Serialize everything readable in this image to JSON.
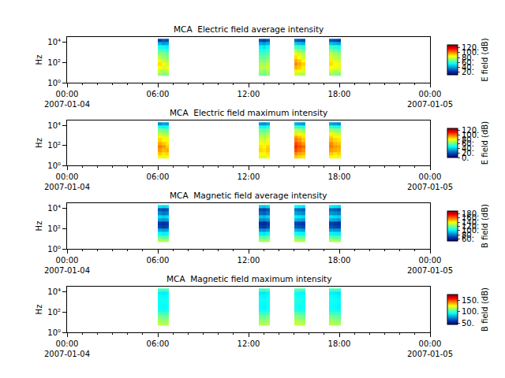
{
  "chart_data": [
    {
      "type": "heatmap",
      "title": "MCA  Electric field average intensity",
      "ylabel": "Hz",
      "log": "y",
      "x": [
        "2007-01-04 06:00",
        "2007-01-04 06:15",
        "2007-01-04 06:30",
        "2007-01-04 06:45",
        "2007-01-04 12:40",
        "2007-01-04 12:55",
        "2007-01-04 13:10",
        "2007-01-04 13:25",
        "2007-01-04 15:00",
        "2007-01-04 15:15",
        "2007-01-04 15:30",
        "2007-01-04 15:45",
        "2007-01-04 17:20",
        "2007-01-04 17:35",
        "2007-01-04 17:50",
        "2007-01-04 18:05"
      ],
      "y": [
        5,
        10,
        20,
        50,
        100,
        200,
        500,
        1000,
        2000,
        5000,
        10000,
        20000
      ],
      "cells": [
        [
          74,
          70,
          72,
          null,
          70,
          68,
          72,
          null,
          80,
          78,
          76,
          null,
          74,
          72,
          70
        ],
        [
          80,
          76,
          78,
          null,
          74,
          72,
          76,
          null,
          88,
          84,
          82,
          null,
          80,
          76,
          78
        ],
        [
          86,
          82,
          84,
          null,
          78,
          76,
          80,
          null,
          95,
          92,
          88,
          null,
          86,
          84,
          82
        ],
        [
          90,
          86,
          80,
          null,
          76,
          74,
          78,
          null,
          100,
          96,
          92,
          null,
          90,
          86,
          84
        ],
        [
          84,
          80,
          76,
          null,
          72,
          70,
          74,
          null,
          96,
          92,
          86,
          null,
          88,
          82,
          80
        ],
        [
          78,
          74,
          72,
          null,
          68,
          66,
          70,
          null,
          90,
          86,
          80,
          null,
          82,
          78,
          76
        ],
        [
          72,
          70,
          68,
          null,
          64,
          62,
          66,
          null,
          84,
          80,
          76,
          null,
          78,
          74,
          72
        ],
        [
          66,
          64,
          62,
          null,
          60,
          58,
          62,
          null,
          76,
          72,
          70,
          null,
          72,
          68,
          66
        ],
        [
          58,
          56,
          54,
          null,
          54,
          52,
          56,
          null,
          64,
          62,
          60,
          null,
          62,
          60,
          58
        ],
        [
          44,
          40,
          42,
          null,
          42,
          40,
          44,
          null,
          48,
          46,
          44,
          null,
          46,
          44,
          42
        ],
        [
          26,
          30,
          28,
          null,
          28,
          26,
          30,
          null,
          32,
          30,
          28,
          null,
          30,
          28,
          26
        ]
      ],
      "xlim": [
        "2007-01-04 00:00",
        "2007-01-05 00:00"
      ],
      "xticks": [
        {
          "value": "2007-01-04 00:00",
          "label": "00:00\n2007-01-04"
        },
        {
          "value": "2007-01-04 06:00",
          "label": "06:00"
        },
        {
          "value": "2007-01-04 12:00",
          "label": "12:00"
        },
        {
          "value": "2007-01-04 18:00",
          "label": "18:00"
        },
        {
          "value": "2007-01-05 00:00",
          "label": "00:00\n2007-01-05"
        }
      ],
      "ylim": [
        1,
        30000
      ],
      "yticks": [
        {
          "value": 1,
          "label": "10⁰"
        },
        {
          "value": 100,
          "label": "10²"
        },
        {
          "value": 10000,
          "label": "10⁴"
        }
      ],
      "colorbar_title": "E field (dB)",
      "colorbar_range": [
        10,
        132
      ],
      "colorbar_ticks": [
        {
          "value": 20,
          "label": "20."
        },
        {
          "value": 40,
          "label": "40."
        },
        {
          "value": 60,
          "label": "60."
        },
        {
          "value": 80,
          "label": "80."
        },
        {
          "value": 100,
          "label": "100."
        },
        {
          "value": 120,
          "label": "120."
        }
      ]
    },
    {
      "type": "heatmap",
      "title": "MCA  Electric field maximum intensity",
      "ylabel": "Hz",
      "log": "y",
      "x": [
        "2007-01-04 06:00",
        "2007-01-04 06:15",
        "2007-01-04 06:30",
        "2007-01-04 06:45",
        "2007-01-04 12:40",
        "2007-01-04 12:55",
        "2007-01-04 13:10",
        "2007-01-04 13:25",
        "2007-01-04 15:00",
        "2007-01-04 15:15",
        "2007-01-04 15:30",
        "2007-01-04 15:45",
        "2007-01-04 17:20",
        "2007-01-04 17:35",
        "2007-01-04 17:50",
        "2007-01-04 18:05"
      ],
      "y": [
        5,
        10,
        20,
        50,
        100,
        200,
        500,
        1000,
        2000,
        5000,
        10000,
        20000
      ],
      "cells": [
        [
          82,
          78,
          80,
          null,
          78,
          76,
          80,
          null,
          88,
          86,
          84,
          null,
          82,
          80,
          78
        ],
        [
          88,
          84,
          86,
          null,
          82,
          80,
          84,
          null,
          96,
          92,
          90,
          null,
          88,
          84,
          86
        ],
        [
          94,
          90,
          92,
          null,
          86,
          84,
          88,
          null,
          104,
          100,
          96,
          null,
          94,
          92,
          90
        ],
        [
          98,
          94,
          88,
          null,
          84,
          82,
          86,
          null,
          108,
          104,
          100,
          null,
          98,
          94,
          92
        ],
        [
          92,
          88,
          84,
          null,
          80,
          78,
          82,
          null,
          104,
          100,
          94,
          null,
          96,
          90,
          88
        ],
        [
          86,
          82,
          80,
          null,
          76,
          74,
          78,
          null,
          98,
          94,
          88,
          null,
          90,
          86,
          84
        ],
        [
          80,
          78,
          76,
          null,
          72,
          70,
          74,
          null,
          92,
          88,
          84,
          null,
          86,
          82,
          80
        ],
        [
          74,
          72,
          70,
          null,
          68,
          66,
          70,
          null,
          84,
          80,
          78,
          null,
          80,
          76,
          74
        ],
        [
          66,
          64,
          62,
          null,
          62,
          60,
          64,
          null,
          72,
          70,
          68,
          null,
          70,
          68,
          66
        ],
        [
          52,
          48,
          50,
          null,
          50,
          48,
          52,
          null,
          56,
          54,
          52,
          null,
          54,
          52,
          50
        ],
        [
          30,
          34,
          32,
          null,
          32,
          30,
          34,
          null,
          36,
          34,
          32,
          null,
          34,
          32,
          30
        ]
      ],
      "xlim": [
        "2007-01-04 00:00",
        "2007-01-05 00:00"
      ],
      "xticks": [
        {
          "value": "2007-01-04 00:00",
          "label": "00:00\n2007-01-04"
        },
        {
          "value": "2007-01-04 06:00",
          "label": "06:00"
        },
        {
          "value": "2007-01-04 12:00",
          "label": "12:00"
        },
        {
          "value": "2007-01-04 18:00",
          "label": "18:00"
        },
        {
          "value": "2007-01-05 00:00",
          "label": "00:00\n2007-01-05"
        }
      ],
      "ylim": [
        1,
        30000
      ],
      "yticks": [
        {
          "value": 1,
          "label": "10⁰"
        },
        {
          "value": 100,
          "label": "10²"
        },
        {
          "value": 10000,
          "label": "10⁴"
        }
      ],
      "colorbar_title": "E field (dB)",
      "colorbar_range": [
        0,
        130
      ],
      "colorbar_ticks": [
        {
          "value": 0,
          "label": "0."
        },
        {
          "value": 20,
          "label": "20."
        },
        {
          "value": 40,
          "label": "40."
        },
        {
          "value": 60,
          "label": "60."
        },
        {
          "value": 80,
          "label": "80."
        },
        {
          "value": 100,
          "label": "100."
        },
        {
          "value": 120,
          "label": "120."
        }
      ]
    },
    {
      "type": "heatmap",
      "title": "MCA  Magnetic field average intensity",
      "ylabel": "Hz",
      "log": "y",
      "x": [
        "2007-01-04 06:00",
        "2007-01-04 06:15",
        "2007-01-04 06:30",
        "2007-01-04 06:45",
        "2007-01-04 12:40",
        "2007-01-04 12:55",
        "2007-01-04 13:10",
        "2007-01-04 13:25",
        "2007-01-04 15:00",
        "2007-01-04 15:15",
        "2007-01-04 15:30",
        "2007-01-04 15:45",
        "2007-01-04 17:20",
        "2007-01-04 17:35",
        "2007-01-04 17:50",
        "2007-01-04 18:05"
      ],
      "y": [
        5,
        10,
        20,
        50,
        100,
        200,
        500,
        1000,
        2000,
        5000,
        10000,
        20000
      ],
      "cells": [
        [
          128,
          126,
          127,
          null,
          126,
          125,
          127,
          null,
          130,
          128,
          127,
          null,
          127,
          126,
          125
        ],
        [
          118,
          116,
          117,
          null,
          116,
          115,
          117,
          null,
          120,
          118,
          117,
          null,
          117,
          116,
          115
        ],
        [
          104,
          102,
          103,
          null,
          102,
          100,
          103,
          null,
          106,
          104,
          103,
          null,
          103,
          102,
          101
        ],
        [
          90,
          88,
          89,
          null,
          86,
          84,
          88,
          null,
          92,
          90,
          88,
          null,
          88,
          86,
          86
        ],
        [
          72,
          70,
          72,
          null,
          70,
          68,
          72,
          null,
          76,
          74,
          72,
          null,
          74,
          72,
          70
        ],
        [
          68,
          66,
          68,
          null,
          66,
          64,
          68,
          null,
          72,
          70,
          68,
          null,
          70,
          68,
          66
        ],
        [
          88,
          86,
          88,
          null,
          84,
          82,
          86,
          null,
          92,
          90,
          88,
          null,
          90,
          88,
          86
        ],
        [
          98,
          96,
          98,
          null,
          94,
          92,
          96,
          null,
          102,
          100,
          98,
          null,
          100,
          98,
          96
        ],
        [
          84,
          80,
          82,
          null,
          78,
          76,
          80,
          null,
          88,
          86,
          84,
          null,
          86,
          84,
          82
        ],
        [
          74,
          72,
          74,
          null,
          72,
          70,
          74,
          null,
          80,
          78,
          76,
          null,
          78,
          76,
          74
        ],
        [
          100,
          98,
          100,
          null,
          96,
          94,
          98,
          null,
          104,
          102,
          100,
          null,
          102,
          100,
          98
        ]
      ],
      "xlim": [
        "2007-01-04 00:00",
        "2007-01-05 00:00"
      ],
      "xticks": [
        {
          "value": "2007-01-04 00:00",
          "label": "00:00\n2007-01-04"
        },
        {
          "value": "2007-01-04 06:00",
          "label": "06:00"
        },
        {
          "value": "2007-01-04 12:00",
          "label": "12:00"
        },
        {
          "value": "2007-01-04 18:00",
          "label": "18:00"
        },
        {
          "value": "2007-01-05 00:00",
          "label": "00:00\n2007-01-05"
        }
      ],
      "ylim": [
        1,
        30000
      ],
      "yticks": [
        {
          "value": 1,
          "label": "10⁰"
        },
        {
          "value": 100,
          "label": "10²"
        },
        {
          "value": 10000,
          "label": "10⁴"
        }
      ],
      "colorbar_title": "B field (dB)",
      "colorbar_range": [
        52,
        192
      ],
      "colorbar_ticks": [
        {
          "value": 60,
          "label": "60."
        },
        {
          "value": 80,
          "label": "80."
        },
        {
          "value": 100,
          "label": "100."
        },
        {
          "value": 120,
          "label": "120."
        },
        {
          "value": 140,
          "label": "140."
        },
        {
          "value": 160,
          "label": "160."
        },
        {
          "value": 180,
          "label": "180."
        }
      ]
    },
    {
      "type": "heatmap",
      "title": "MCA  Magnetic field maximum intensity",
      "ylabel": "Hz",
      "log": "y",
      "x": [
        "2007-01-04 06:00",
        "2007-01-04 06:15",
        "2007-01-04 06:30",
        "2007-01-04 06:45",
        "2007-01-04 12:40",
        "2007-01-04 12:55",
        "2007-01-04 13:10",
        "2007-01-04 13:25",
        "2007-01-04 15:00",
        "2007-01-04 15:15",
        "2007-01-04 15:30",
        "2007-01-04 15:45",
        "2007-01-04 17:20",
        "2007-01-04 17:35",
        "2007-01-04 17:50",
        "2007-01-04 18:05"
      ],
      "y": [
        5,
        10,
        20,
        50,
        100,
        200,
        500,
        1000,
        2000,
        5000,
        10000,
        20000
      ],
      "cells": [
        [
          118,
          116,
          117,
          null,
          116,
          115,
          117,
          null,
          120,
          118,
          117,
          null,
          117,
          116,
          115
        ],
        [
          114,
          112,
          113,
          null,
          112,
          111,
          113,
          null,
          116,
          114,
          113,
          null,
          113,
          112,
          111
        ],
        [
          110,
          108,
          109,
          null,
          108,
          107,
          109,
          null,
          112,
          110,
          109,
          null,
          109,
          108,
          107
        ],
        [
          104,
          102,
          103,
          null,
          102,
          101,
          103,
          null,
          106,
          104,
          103,
          null,
          103,
          102,
          101
        ],
        [
          96,
          95,
          96,
          null,
          95,
          94,
          96,
          null,
          98,
          97,
          96,
          null,
          96,
          95,
          94
        ],
        [
          94,
          93,
          94,
          null,
          93,
          92,
          94,
          null,
          96,
          95,
          94,
          null,
          94,
          93,
          92
        ],
        [
          95,
          94,
          95,
          null,
          94,
          93,
          95,
          null,
          97,
          96,
          95,
          null,
          95,
          94,
          93
        ],
        [
          96,
          95,
          96,
          null,
          95,
          94,
          96,
          null,
          98,
          97,
          96,
          null,
          96,
          95,
          94
        ],
        [
          94,
          93,
          94,
          null,
          93,
          92,
          94,
          null,
          96,
          95,
          94,
          null,
          94,
          93,
          92
        ],
        [
          92,
          91,
          92,
          null,
          91,
          90,
          92,
          null,
          94,
          93,
          92,
          null,
          92,
          91,
          90
        ],
        [
          102,
          101,
          102,
          null,
          101,
          100,
          102,
          null,
          104,
          103,
          102,
          null,
          102,
          101,
          100
        ]
      ],
      "xlim": [
        "2007-01-04 00:00",
        "2007-01-05 00:00"
      ],
      "xticks": [
        {
          "value": "2007-01-04 00:00",
          "label": "00:00\n2007-01-04"
        },
        {
          "value": "2007-01-04 06:00",
          "label": "06:00"
        },
        {
          "value": "2007-01-04 12:00",
          "label": "12:00"
        },
        {
          "value": "2007-01-04 18:00",
          "label": "18:00"
        },
        {
          "value": "2007-01-05 00:00",
          "label": "00:00\n2007-01-05"
        }
      ],
      "ylim": [
        1,
        30000
      ],
      "yticks": [
        {
          "value": 1,
          "label": "10⁰"
        },
        {
          "value": 100,
          "label": "10²"
        },
        {
          "value": 10000,
          "label": "10⁴"
        }
      ],
      "colorbar_title": "B field (dB)",
      "colorbar_range": [
        45,
        175
      ],
      "colorbar_ticks": [
        {
          "value": 50,
          "label": "50."
        },
        {
          "value": 100,
          "label": "100."
        },
        {
          "value": 150,
          "label": "150."
        }
      ]
    }
  ]
}
